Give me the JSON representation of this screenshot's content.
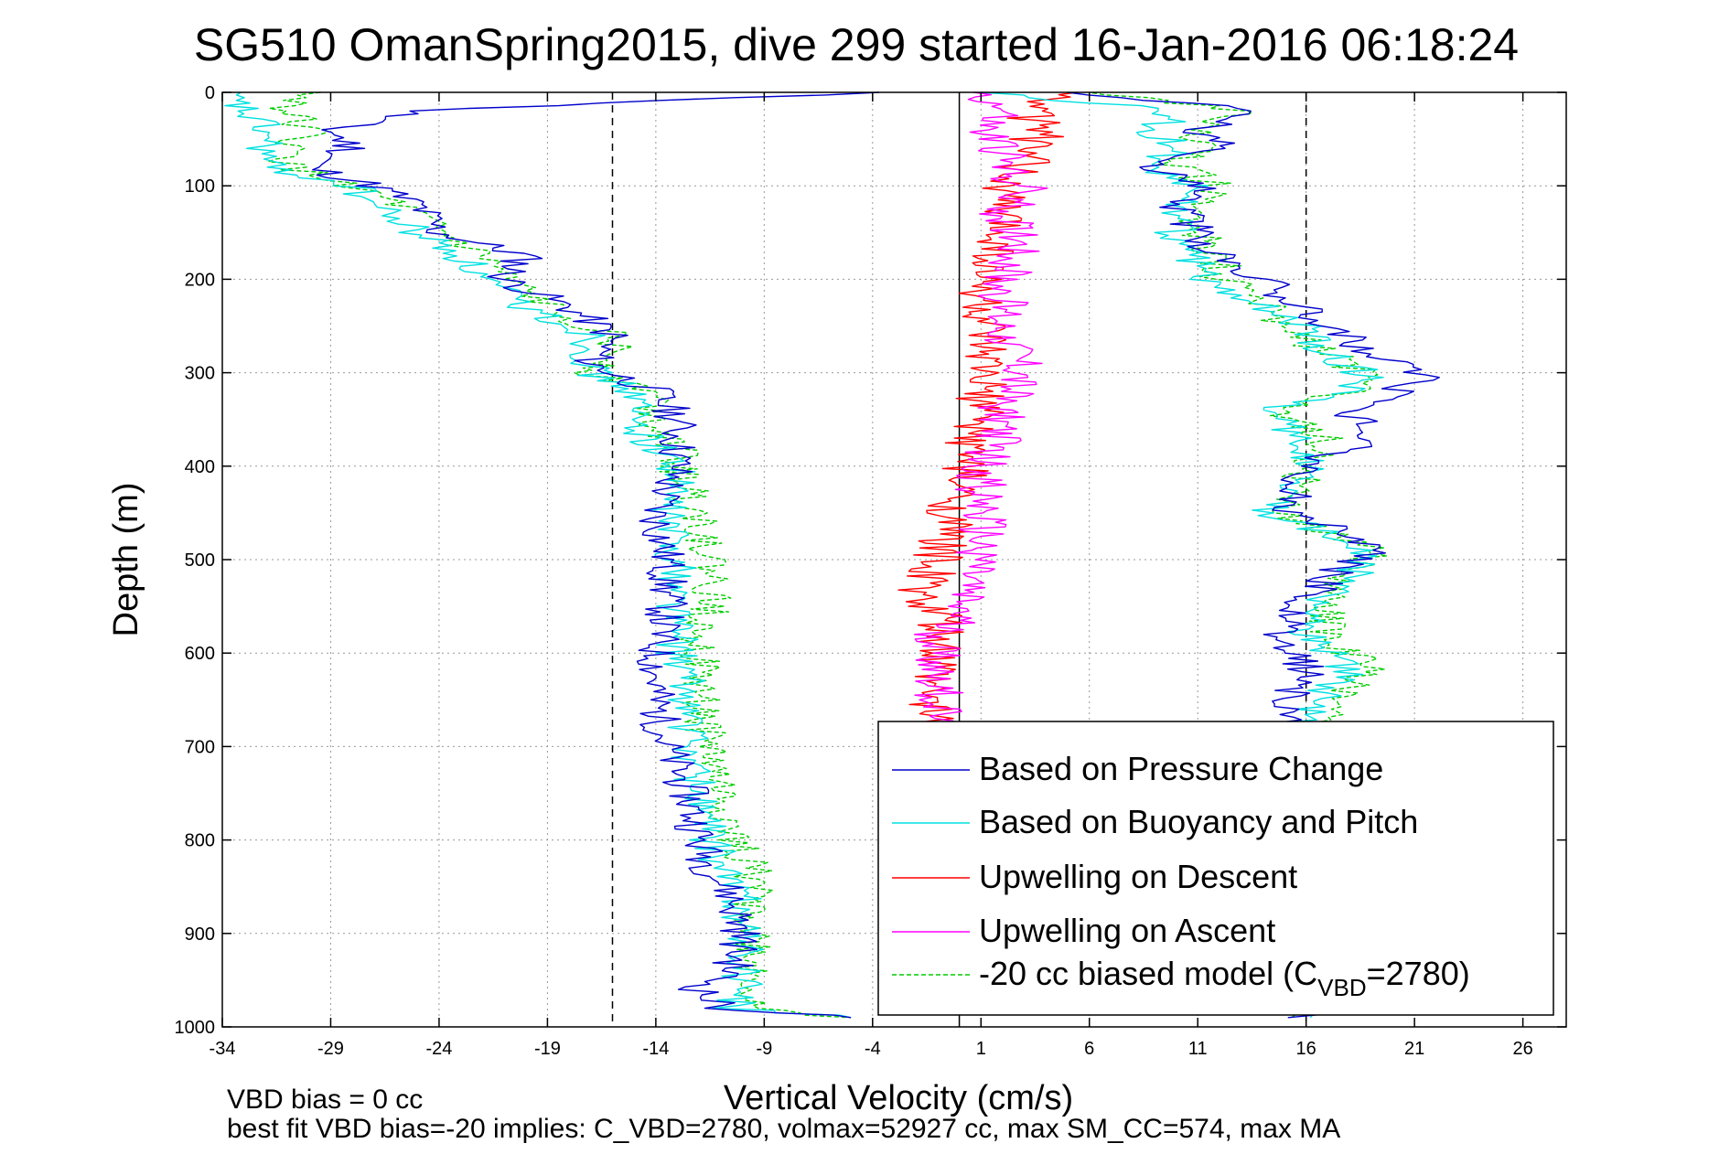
{
  "chart_data": {
    "type": "line",
    "title": "SG510 OmanSpring2015, dive 299 started 16-Jan-2016 06:18:24",
    "xlabel": "Vertical Velocity (cm/s)",
    "ylabel": "Depth (m)",
    "xlim": [
      -34,
      28
    ],
    "ylim": [
      1000,
      0
    ],
    "y_reversed": true,
    "x_ticks": [
      "-34",
      "-29",
      "-24",
      "-19",
      "-14",
      "-9",
      "-4",
      "1",
      "6",
      "11",
      "16",
      "21",
      "26"
    ],
    "y_ticks": [
      "0",
      "100",
      "200",
      "300",
      "400",
      "500",
      "600",
      "700",
      "800",
      "900",
      "1000"
    ],
    "grid": true,
    "legend_position": "bottom-right",
    "reference_lines": [
      {
        "x": -16,
        "style": "dashed"
      },
      {
        "x": 0,
        "style": "solid"
      },
      {
        "x": 16,
        "style": "dashed"
      }
    ],
    "series": [
      {
        "name": "Based on Pressure Change",
        "color": "#0000cc",
        "style": "solid",
        "descent": {
          "depth": [
            0,
            20,
            40,
            60,
            80,
            100,
            120,
            150,
            175,
            200,
            230,
            260,
            290,
            300,
            320,
            350,
            380,
            400,
            450,
            500,
            550,
            600,
            650,
            700,
            750,
            800,
            830,
            860,
            900,
            940,
            960,
            980,
            990
          ],
          "vel": [
            -4,
            -25,
            -29,
            -28,
            -30,
            -27,
            -25,
            -24,
            -20,
            -21,
            -18,
            -16,
            -17,
            -16,
            -14,
            -13,
            -13,
            -13,
            -14,
            -13.5,
            -13.5,
            -14,
            -14,
            -13.5,
            -12.5,
            -12,
            -11.5,
            -10.5,
            -10,
            -10.5,
            -12,
            -11,
            -5
          ]
        },
        "ascent": {
          "depth": [
            990,
            960,
            900,
            860,
            800,
            700,
            660,
            620,
            580,
            560,
            520,
            490,
            470,
            450,
            400,
            370,
            340,
            320,
            305,
            280,
            250,
            220,
            200,
            180,
            150,
            120,
            100,
            80,
            60,
            40,
            20,
            0
          ],
          "vel": [
            16,
            16,
            16,
            16,
            16,
            16,
            15,
            16,
            15,
            15,
            17,
            19,
            18,
            15,
            16,
            19,
            18,
            20,
            22,
            19,
            17,
            15,
            14,
            12,
            11,
            10,
            11,
            9,
            12,
            11,
            14,
            5
          ]
        }
      },
      {
        "name": "Based on Buoyancy and Pitch",
        "color": "#00e0e0",
        "style": "solid",
        "descent": {
          "depth": [
            0,
            20,
            40,
            60,
            80,
            100,
            120,
            150,
            175,
            200,
            230,
            260,
            290,
            300,
            320,
            350,
            380,
            400,
            450,
            500,
            550,
            600,
            650,
            700,
            750,
            800,
            830,
            860,
            900,
            940,
            960,
            980,
            990
          ],
          "vel": [
            -34,
            -33,
            -32,
            -32,
            -32,
            -28,
            -27,
            -25,
            -23,
            -22,
            -20,
            -17,
            -17,
            -17,
            -15,
            -15,
            -14,
            -13,
            -13.5,
            -13,
            -13,
            -13,
            -12.5,
            -12.5,
            -12,
            -11.5,
            -11,
            -10,
            -10,
            -10,
            -10,
            -10.5,
            -5
          ]
        },
        "ascent": {
          "depth": [
            990,
            960,
            900,
            860,
            800,
            700,
            660,
            620,
            580,
            560,
            520,
            490,
            470,
            450,
            400,
            370,
            340,
            320,
            305,
            280,
            250,
            220,
            200,
            180,
            150,
            120,
            100,
            80,
            60,
            40,
            20,
            0
          ],
          "vel": [
            16,
            16,
            16,
            16,
            16,
            16,
            16,
            18,
            16,
            16,
            18,
            19,
            17,
            14,
            16,
            16,
            14,
            18,
            19,
            17,
            16,
            13,
            11,
            11,
            10,
            10,
            11,
            9,
            10,
            9,
            10,
            1
          ]
        }
      },
      {
        "name": "Upwelling on Descent",
        "color": "#ff0000",
        "style": "solid",
        "depth": [
          0,
          20,
          40,
          60,
          80,
          100,
          130,
          160,
          200,
          250,
          300,
          340,
          380,
          420,
          460,
          500,
          540,
          560,
          580,
          600,
          640,
          680
        ],
        "vel": [
          5,
          3,
          4,
          3,
          3,
          2,
          2,
          2,
          1,
          1,
          1,
          1,
          0.5,
          0,
          -0.5,
          -1,
          -2,
          -1,
          -1,
          -1,
          -1.5,
          -1
        ]
      },
      {
        "name": "Upwelling on Ascent",
        "color": "#ff00ff",
        "style": "solid",
        "depth": [
          0,
          20,
          40,
          60,
          80,
          100,
          130,
          160,
          200,
          250,
          300,
          330,
          360,
          400,
          440,
          470,
          500,
          540,
          560,
          580,
          600,
          640,
          680
        ],
        "vel": [
          1,
          2,
          1,
          2,
          2,
          3,
          2,
          3,
          2,
          2,
          3,
          2,
          2,
          1,
          1,
          1,
          1,
          0,
          0,
          -1,
          -1,
          -1,
          -1
        ]
      },
      {
        "name": "-20 cc biased model (C",
        "name_sub": "VBD",
        "name_suffix": "=2780)",
        "color": "#00cc00",
        "style": "dashed",
        "descent": {
          "depth": [
            0,
            20,
            40,
            60,
            80,
            100,
            120,
            150,
            175,
            200,
            230,
            260,
            290,
            300,
            320,
            350,
            380,
            400,
            450,
            500,
            550,
            600,
            650,
            700,
            750,
            800,
            830,
            860,
            900,
            940,
            960,
            980,
            990
          ],
          "vel": [
            -30,
            -31,
            -30,
            -31,
            -31,
            -28,
            -26,
            -24,
            -22,
            -21,
            -19,
            -16,
            -16,
            -17,
            -14,
            -14,
            -13,
            -13,
            -12,
            -11.5,
            -11.5,
            -12,
            -12,
            -11.5,
            -11,
            -10.5,
            -9.5,
            -9.5,
            -9.5,
            -9.5,
            -9.5,
            -10,
            -5
          ]
        },
        "ascent": {
          "depth": [
            990,
            960,
            900,
            860,
            800,
            700,
            660,
            620,
            580,
            560,
            520,
            490,
            470,
            450,
            400,
            370,
            340,
            320,
            305,
            280,
            250,
            220,
            200,
            180,
            150,
            120,
            100,
            80,
            60,
            40,
            20,
            0
          ],
          "vel": [
            16,
            16,
            16,
            16,
            16,
            16,
            17,
            19,
            17,
            17,
            18,
            19,
            17,
            15,
            16,
            17,
            14,
            18,
            19,
            17,
            15,
            14,
            12,
            12,
            11,
            11,
            12,
            10,
            11,
            11,
            13,
            6
          ]
        }
      }
    ]
  },
  "footer": {
    "line1": "VBD bias = 0 cc",
    "line2": "best fit VBD bias=-20 implies: C_VBD=2780, volmax=52927 cc, max SM_CC=574, max MA"
  }
}
